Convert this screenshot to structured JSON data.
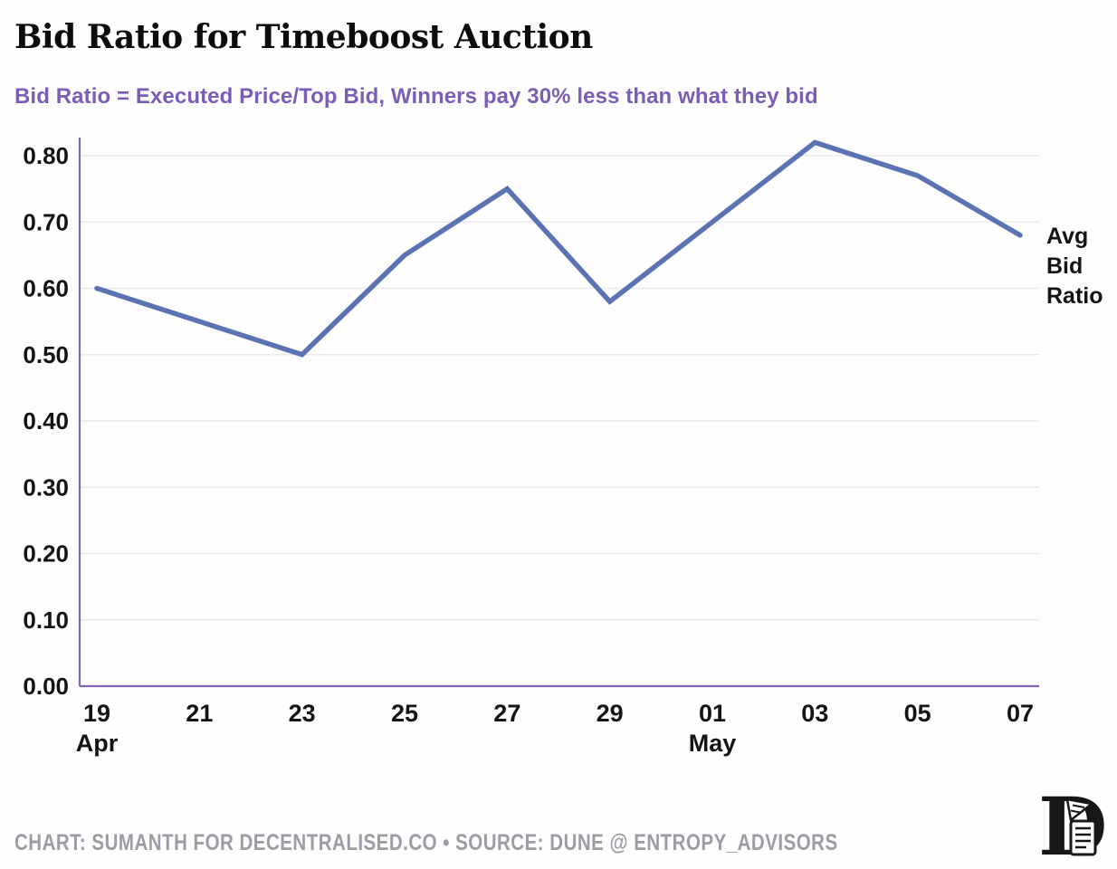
{
  "page": {
    "title": "Bid Ratio for Timeboost Auction",
    "subtitle": "Bid Ratio = Executed Price/Top Bid, Winners pay 30% less than what they bid",
    "footer": "CHART: SUMANTH FOR DECENTRALISED.CO • SOURCE: DUNE @ ENTROPY_ADVISORS",
    "logo_icon": "decentralised-d-scroll-logo"
  },
  "colors": {
    "background": "#fefefe",
    "accent_purple": "#7c5db6",
    "axis_purple": "#8065b5",
    "line_blue": "#5c73b3",
    "grid_gray": "#e9e9ec",
    "text_black": "#141414",
    "footer_gray": "#9b9ca4",
    "logo_black": "#17171a"
  },
  "chart_data": {
    "type": "line",
    "title": "Bid Ratio for Timeboost Auction",
    "subtitle": "Bid Ratio = Executed Price/Top Bid, Winners pay 30% less than what they bid",
    "xlabel": "",
    "ylabel": "",
    "x_categories": [
      "Apr 19",
      "Apr 21",
      "Apr 23",
      "Apr 25",
      "Apr 27",
      "Apr 29",
      "May 01",
      "May 03",
      "May 05",
      "May 07"
    ],
    "x_tick_labels": [
      "19",
      "21",
      "23",
      "25",
      "27",
      "29",
      "01",
      "03",
      "05",
      "07"
    ],
    "x_month_labels": [
      {
        "tick_index": 0,
        "label": "Apr"
      },
      {
        "tick_index": 6,
        "label": "May"
      }
    ],
    "series": [
      {
        "name": "Avg Bid Ratio",
        "color": "#5c73b3",
        "values": [
          0.6,
          0.55,
          0.5,
          0.65,
          0.75,
          0.58,
          0.7,
          0.82,
          0.77,
          0.68
        ]
      }
    ],
    "y_ticks": [
      0.0,
      0.1,
      0.2,
      0.3,
      0.4,
      0.5,
      0.6,
      0.7,
      0.8
    ],
    "ylim": [
      0.0,
      0.83
    ],
    "grid": "horizontal",
    "legend": "end-of-line-label"
  }
}
